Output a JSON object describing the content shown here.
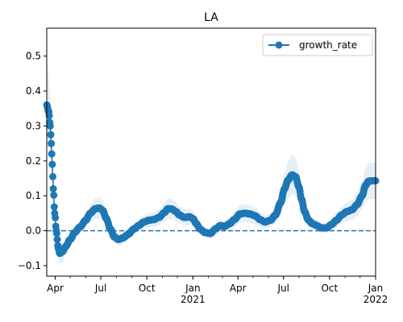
{
  "chart_data": {
    "type": "line",
    "title": "LA",
    "xlabel": "",
    "ylabel": "",
    "x_range": [
      "2020-03-15",
      "2022-01-01"
    ],
    "ylim": [
      -0.13,
      0.58
    ],
    "y_ticks": [
      -0.1,
      0.0,
      0.1,
      0.2,
      0.3,
      0.4,
      0.5
    ],
    "y_tick_labels": [
      "−0.1",
      "0.0",
      "0.1",
      "0.2",
      "0.3",
      "0.4",
      "0.5"
    ],
    "x_ticks": [
      {
        "date": "2020-04-01",
        "label": "Apr",
        "sub": ""
      },
      {
        "date": "2020-07-01",
        "label": "Jul",
        "sub": ""
      },
      {
        "date": "2020-10-01",
        "label": "Oct",
        "sub": ""
      },
      {
        "date": "2021-01-01",
        "label": "Jan",
        "sub": "2021"
      },
      {
        "date": "2021-04-01",
        "label": "Apr",
        "sub": ""
      },
      {
        "date": "2021-07-01",
        "label": "Jul",
        "sub": ""
      },
      {
        "date": "2021-10-01",
        "label": "Oct",
        "sub": ""
      },
      {
        "date": "2022-01-01",
        "label": "Jan",
        "sub": "2022"
      }
    ],
    "reference_line": {
      "y": 0.0,
      "style": "dashed"
    },
    "legend": {
      "position": "top-right",
      "entries": [
        "growth_rate"
      ]
    },
    "grid": false,
    "series": [
      {
        "name": "growth_rate",
        "color": "#1f77b4",
        "band_color": "#c6dbef",
        "points": [
          [
            "2020-03-15",
            0.36
          ],
          [
            "2020-03-19",
            0.34
          ],
          [
            "2020-03-22",
            0.3
          ],
          [
            "2020-03-24",
            0.25
          ],
          [
            "2020-03-26",
            0.19
          ],
          [
            "2020-03-28",
            0.12
          ],
          [
            "2020-03-31",
            0.05
          ],
          [
            "2020-04-03",
            0.0
          ],
          [
            "2020-04-07",
            -0.05
          ],
          [
            "2020-04-10",
            -0.065
          ],
          [
            "2020-04-15",
            -0.06
          ],
          [
            "2020-04-22",
            -0.045
          ],
          [
            "2020-05-01",
            -0.025
          ],
          [
            "2020-05-10",
            -0.005
          ],
          [
            "2020-05-20",
            0.01
          ],
          [
            "2020-06-01",
            0.03
          ],
          [
            "2020-06-10",
            0.05
          ],
          [
            "2020-06-20",
            0.063
          ],
          [
            "2020-06-28",
            0.065
          ],
          [
            "2020-07-05",
            0.058
          ],
          [
            "2020-07-12",
            0.035
          ],
          [
            "2020-07-20",
            0.005
          ],
          [
            "2020-07-28",
            -0.018
          ],
          [
            "2020-08-05",
            -0.025
          ],
          [
            "2020-08-15",
            -0.02
          ],
          [
            "2020-08-25",
            -0.01
          ],
          [
            "2020-09-05",
            0.005
          ],
          [
            "2020-09-15",
            0.015
          ],
          [
            "2020-09-25",
            0.025
          ],
          [
            "2020-10-05",
            0.03
          ],
          [
            "2020-10-15",
            0.032
          ],
          [
            "2020-10-25",
            0.038
          ],
          [
            "2020-11-05",
            0.052
          ],
          [
            "2020-11-12",
            0.063
          ],
          [
            "2020-11-20",
            0.062
          ],
          [
            "2020-11-28",
            0.055
          ],
          [
            "2020-12-05",
            0.045
          ],
          [
            "2020-12-15",
            0.038
          ],
          [
            "2020-12-25",
            0.04
          ],
          [
            "2021-01-01",
            0.035
          ],
          [
            "2021-01-08",
            0.02
          ],
          [
            "2021-01-15",
            0.005
          ],
          [
            "2021-01-25",
            -0.005
          ],
          [
            "2021-02-05",
            -0.008
          ],
          [
            "2021-02-15",
            0.005
          ],
          [
            "2021-02-25",
            0.015
          ],
          [
            "2021-03-05",
            0.012
          ],
          [
            "2021-03-15",
            0.02
          ],
          [
            "2021-03-25",
            0.032
          ],
          [
            "2021-04-05",
            0.048
          ],
          [
            "2021-04-15",
            0.05
          ],
          [
            "2021-04-25",
            0.048
          ],
          [
            "2021-05-05",
            0.043
          ],
          [
            "2021-05-15",
            0.032
          ],
          [
            "2021-05-25",
            0.025
          ],
          [
            "2021-06-05",
            0.03
          ],
          [
            "2021-06-15",
            0.045
          ],
          [
            "2021-06-25",
            0.08
          ],
          [
            "2021-07-03",
            0.12
          ],
          [
            "2021-07-10",
            0.145
          ],
          [
            "2021-07-18",
            0.16
          ],
          [
            "2021-07-25",
            0.155
          ],
          [
            "2021-08-01",
            0.125
          ],
          [
            "2021-08-06",
            0.09
          ],
          [
            "2021-08-12",
            0.055
          ],
          [
            "2021-08-20",
            0.03
          ],
          [
            "2021-08-28",
            0.02
          ],
          [
            "2021-09-05",
            0.015
          ],
          [
            "2021-09-15",
            0.008
          ],
          [
            "2021-09-25",
            0.008
          ],
          [
            "2021-10-05",
            0.018
          ],
          [
            "2021-10-15",
            0.03
          ],
          [
            "2021-10-25",
            0.045
          ],
          [
            "2021-11-05",
            0.055
          ],
          [
            "2021-11-15",
            0.06
          ],
          [
            "2021-11-25",
            0.075
          ],
          [
            "2021-12-05",
            0.1
          ],
          [
            "2021-12-12",
            0.13
          ],
          [
            "2021-12-18",
            0.142
          ],
          [
            "2021-12-25",
            0.143
          ],
          [
            "2022-01-01",
            0.143
          ]
        ]
      }
    ]
  }
}
